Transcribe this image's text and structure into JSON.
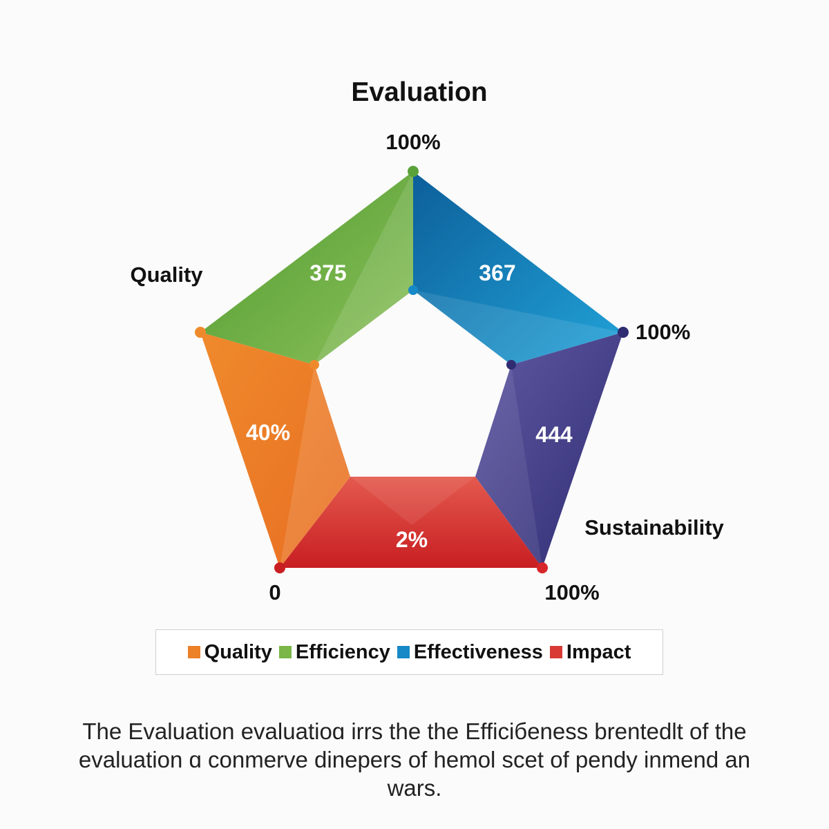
{
  "chart_data": {
    "type": "radar",
    "title": "Evaluation",
    "segments": [
      {
        "name": "Efficiency",
        "value_label": "375",
        "color": "#6aa843"
      },
      {
        "name": "Effectiveness",
        "value_label": "367",
        "color": "#1689c6"
      },
      {
        "name": "Sustainability",
        "value_label": "444",
        "color": "#4b4593"
      },
      {
        "name": "Impact",
        "value_label": "2%",
        "color": "#d93a33"
      },
      {
        "name": "Quality",
        "value_label": "40%",
        "color": "#ec8127"
      }
    ],
    "outer_labels": {
      "top": "100%",
      "right": "100%",
      "bottom_right": "100%",
      "bottom_left": "0",
      "quality": "Quality",
      "sustainability": "Sustainability"
    },
    "legend": [
      {
        "label": "Quality",
        "color": "#ec8127"
      },
      {
        "label": "Efficiency",
        "color": "#7ab648"
      },
      {
        "label": "Effectiveness",
        "color": "#1689c6"
      },
      {
        "label": "Impact",
        "color": "#d93a33"
      }
    ],
    "legend_placement": "bottom",
    "caption": "The Evaluation evaluatioɑ irrs the the Efficiбeness brentedlt of the evaluation ɑ conmerve dinepers of hemol scet of pendy inmend an wars."
  }
}
